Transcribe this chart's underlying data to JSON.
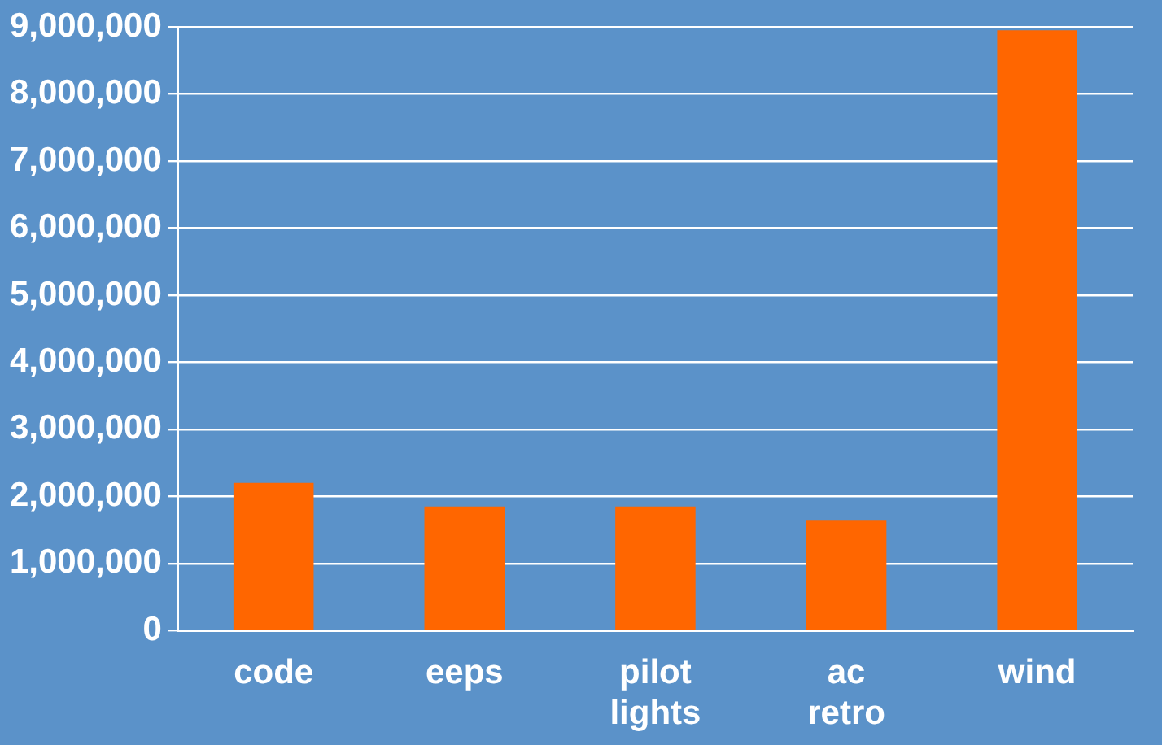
{
  "chart_data": {
    "type": "bar",
    "categories": [
      "code",
      "eeps",
      "pilot lights",
      "ac retro",
      "wind"
    ],
    "values": [
      2200000,
      1850000,
      1850000,
      1650000,
      8950000
    ],
    "color": "#ff6600",
    "ylim": [
      0,
      9000000
    ],
    "yticks": [
      0,
      {
        "value": 1000000,
        "label": "1,000,000"
      },
      {
        "value": 2000000,
        "label": "2,000,000"
      },
      {
        "value": 3000000,
        "label": "3,000,000"
      },
      {
        "value": 4000000,
        "label": "4,000,000"
      },
      {
        "value": 5000000,
        "label": "5,000,000"
      },
      {
        "value": 6000000,
        "label": "6,000,000"
      },
      {
        "value": 7000000,
        "label": "7,000,000"
      },
      {
        "value": 8000000,
        "label": "8,000,000"
      },
      {
        "value": 9000000,
        "label": "9,000,000"
      }
    ],
    "grid": "y",
    "legend": false
  }
}
